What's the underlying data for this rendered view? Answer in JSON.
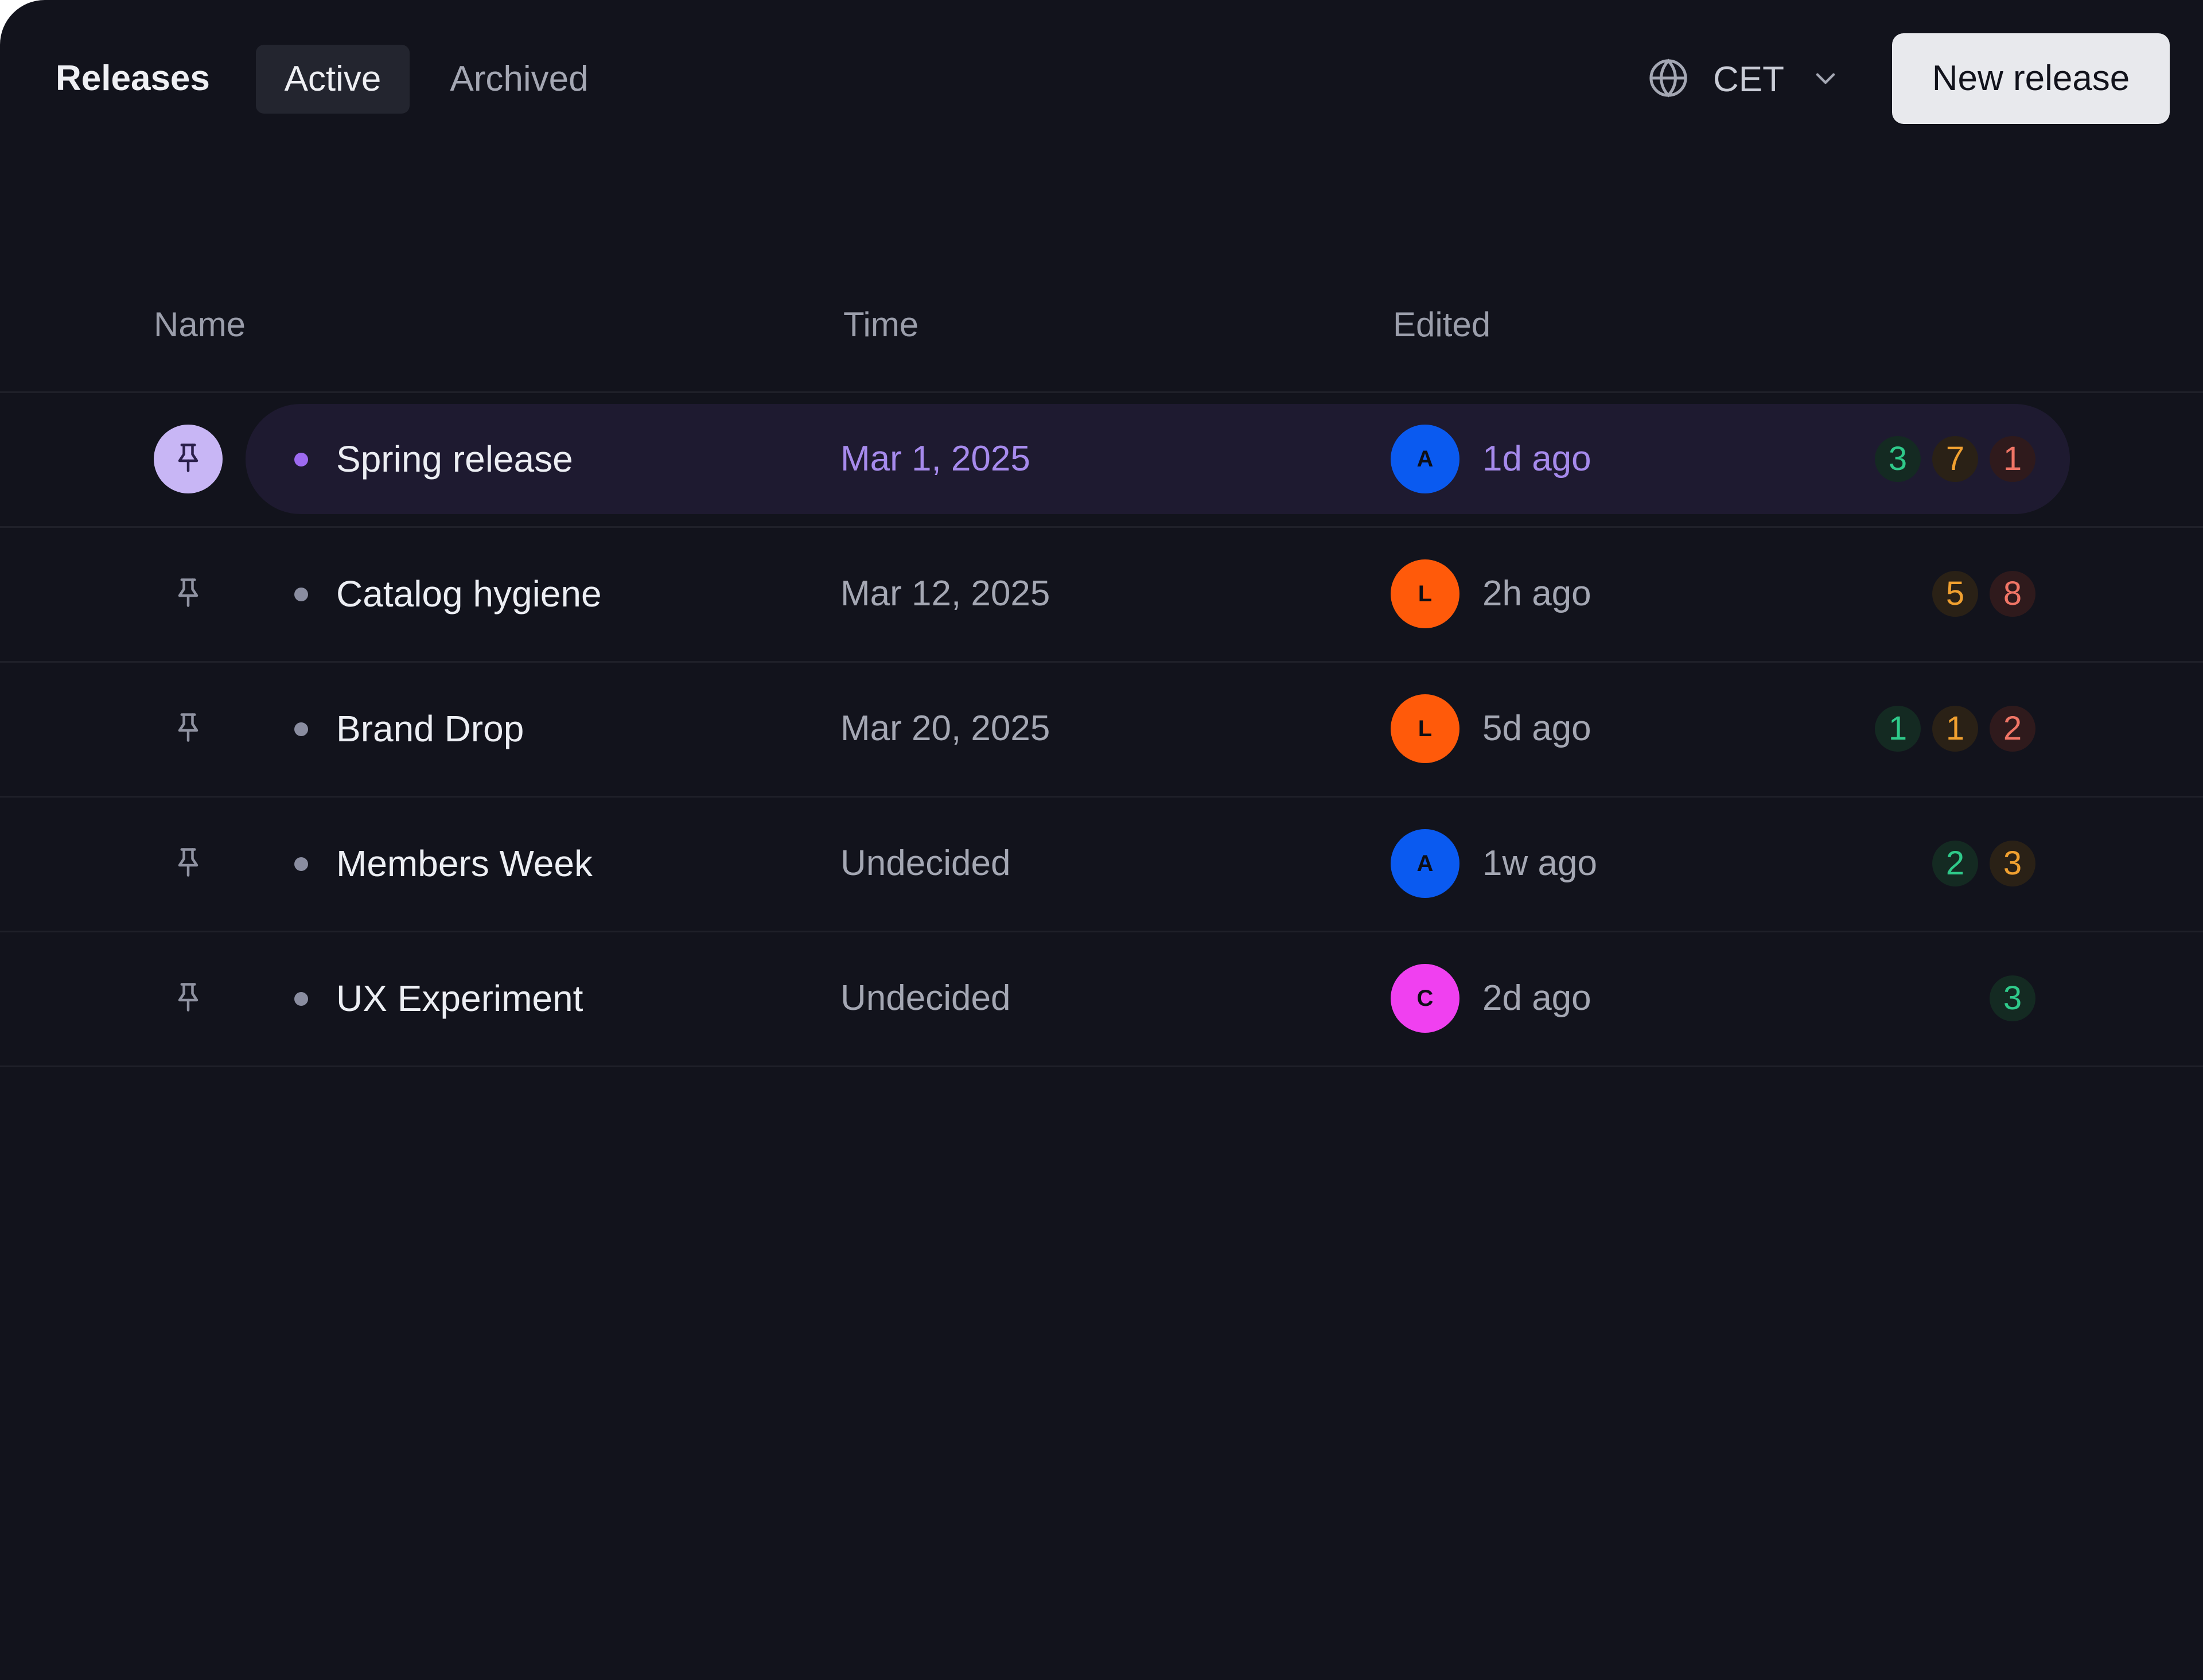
{
  "header": {
    "title": "Releases",
    "tabs": [
      {
        "label": "Active",
        "active": true
      },
      {
        "label": "Archived",
        "active": false
      }
    ],
    "timezone": {
      "label": "CET",
      "icon": "globe-icon",
      "dropdown_icon": "chevron-down-icon"
    },
    "new_button_label": "New release"
  },
  "columns": {
    "name": "Name",
    "time": "Time",
    "edited": "Edited"
  },
  "status_colors": {
    "green": "#2fc98a",
    "orange": "#f0a030",
    "red": "#f07566"
  },
  "releases": [
    {
      "name": "Spring release",
      "time": "Mar 1, 2025",
      "avatar": "A",
      "avatar_color": "#0a5af0",
      "edited": "1d ago",
      "pinned": true,
      "badges": [
        {
          "value": "3",
          "status": "green"
        },
        {
          "value": "7",
          "status": "orange"
        },
        {
          "value": "1",
          "status": "red"
        }
      ]
    },
    {
      "name": "Catalog hygiene",
      "time": "Mar 12, 2025",
      "avatar": "L",
      "avatar_color": "#ff5a0a",
      "edited": "2h ago",
      "pinned": false,
      "badges": [
        {
          "value": "5",
          "status": "orange"
        },
        {
          "value": "8",
          "status": "red"
        }
      ]
    },
    {
      "name": "Brand Drop",
      "time": "Mar 20, 2025",
      "avatar": "L",
      "avatar_color": "#ff5a0a",
      "edited": "5d ago",
      "pinned": false,
      "badges": [
        {
          "value": "1",
          "status": "green"
        },
        {
          "value": "1",
          "status": "orange"
        },
        {
          "value": "2",
          "status": "red"
        }
      ]
    },
    {
      "name": "Members Week",
      "time": "Undecided",
      "avatar": "A",
      "avatar_color": "#0a5af0",
      "edited": "1w ago",
      "pinned": false,
      "badges": [
        {
          "value": "2",
          "status": "green"
        },
        {
          "value": "3",
          "status": "orange"
        }
      ]
    },
    {
      "name": "UX Experiment",
      "time": "Undecided",
      "avatar": "C",
      "avatar_color": "#f040f0",
      "edited": "2d ago",
      "pinned": false,
      "badges": [
        {
          "value": "3",
          "status": "green"
        }
      ]
    }
  ]
}
